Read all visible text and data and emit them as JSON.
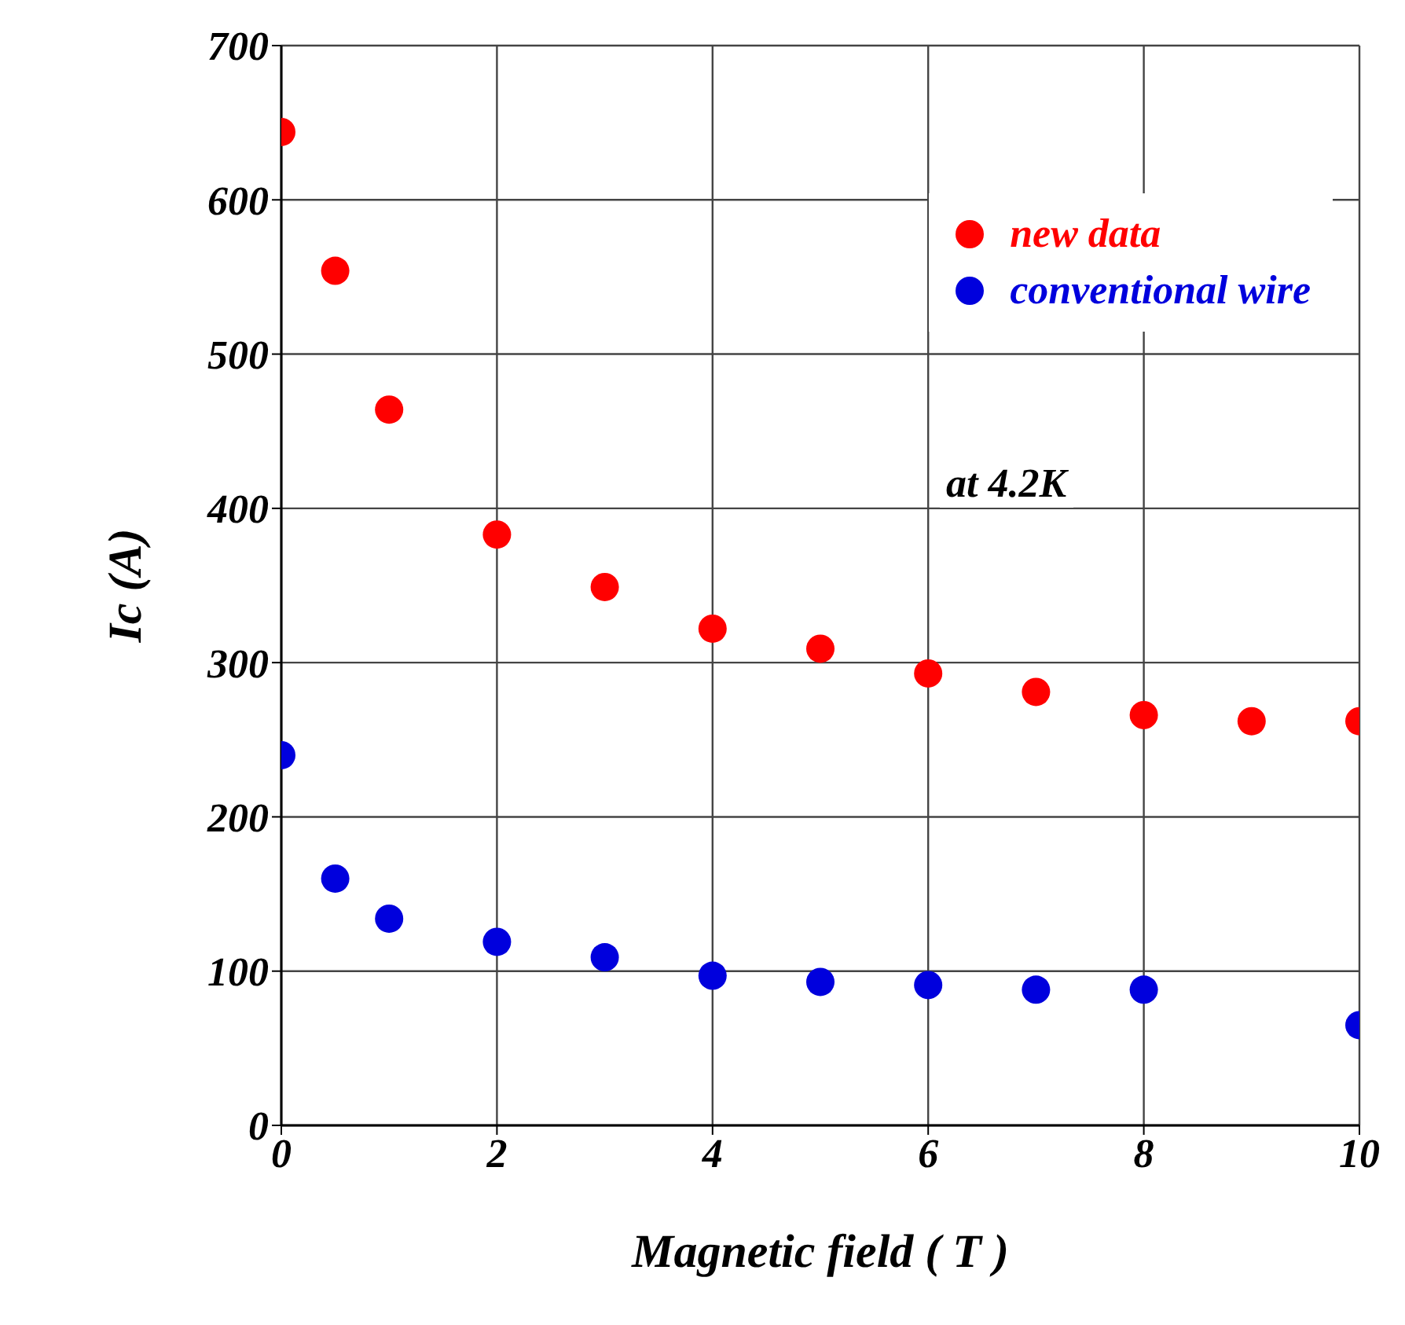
{
  "chart_data": {
    "type": "scatter",
    "xlabel": "Magnetic field ( T )",
    "ylabel": "Ic (A)",
    "annotations": [
      "at 4.2K"
    ],
    "xlim": [
      0,
      10
    ],
    "xticks": [
      0,
      2,
      4,
      6,
      8,
      10
    ],
    "ylim": [
      0,
      700
    ],
    "yticks": [
      0,
      100,
      200,
      300,
      400,
      500,
      600,
      700
    ],
    "grid": true,
    "legend": "top right",
    "marker": "circle",
    "series": [
      {
        "name": "new data",
        "color": "#ff0000",
        "x": [
          0,
          0.5,
          1,
          2,
          3,
          4,
          5,
          6,
          7,
          8,
          9,
          10
        ],
        "values": [
          644,
          554,
          464,
          383,
          349,
          322,
          309,
          293,
          281,
          266,
          262,
          262
        ]
      },
      {
        "name": "conventional wire",
        "color": "#0000dd",
        "x": [
          0,
          0.5,
          1,
          2,
          3,
          4,
          5,
          6,
          7,
          8,
          10
        ],
        "values": [
          240,
          160,
          134,
          119,
          109,
          97,
          93,
          91,
          88,
          88,
          65
        ]
      }
    ]
  }
}
